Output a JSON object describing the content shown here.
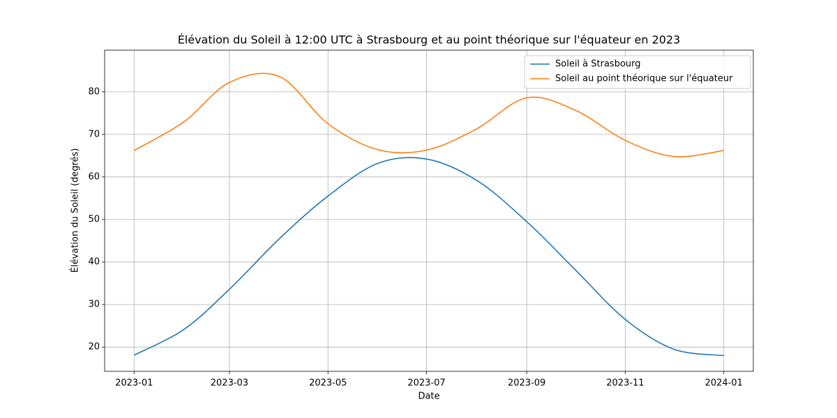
{
  "chart_data": {
    "type": "line",
    "title": "Élévation du Soleil à 12:00 UTC à Strasbourg et au point théorique sur l'équateur en 2023",
    "x_label": "Date",
    "y_label": "Élévation du Soleil (degrés)",
    "x": [
      "2023-01",
      "2023-02",
      "2023-03",
      "2023-04",
      "2023-05",
      "2023-06",
      "2023-07",
      "2023-08",
      "2023-09",
      "2023-10",
      "2023-11",
      "2023-12",
      "2024-01"
    ],
    "series": [
      {
        "name": "Soleil à Strasbourg",
        "color": "#1f77b4",
        "values": [
          18.1,
          24.2,
          33.6,
          45.5,
          55.5,
          63.2,
          64.2,
          59.2,
          49.5,
          38.2,
          26.5,
          19.5,
          18.0
        ]
      },
      {
        "name": "Soleil au point théorique sur l'équateur",
        "color": "#ff7f0e",
        "values": [
          66.2,
          73.0,
          82.2,
          83.6,
          72.5,
          66.4,
          66.3,
          71.3,
          78.6,
          75.7,
          68.6,
          64.8,
          66.2
        ]
      }
    ],
    "xticks": [
      "2023-01",
      "2023-03",
      "2023-05",
      "2023-07",
      "2023-09",
      "2023-11",
      "2024-01"
    ],
    "ylim": [
      14.3,
      89.8
    ],
    "yticks": [
      20,
      30,
      40,
      50,
      60,
      70,
      80
    ],
    "grid": true,
    "legend": "upper right"
  }
}
